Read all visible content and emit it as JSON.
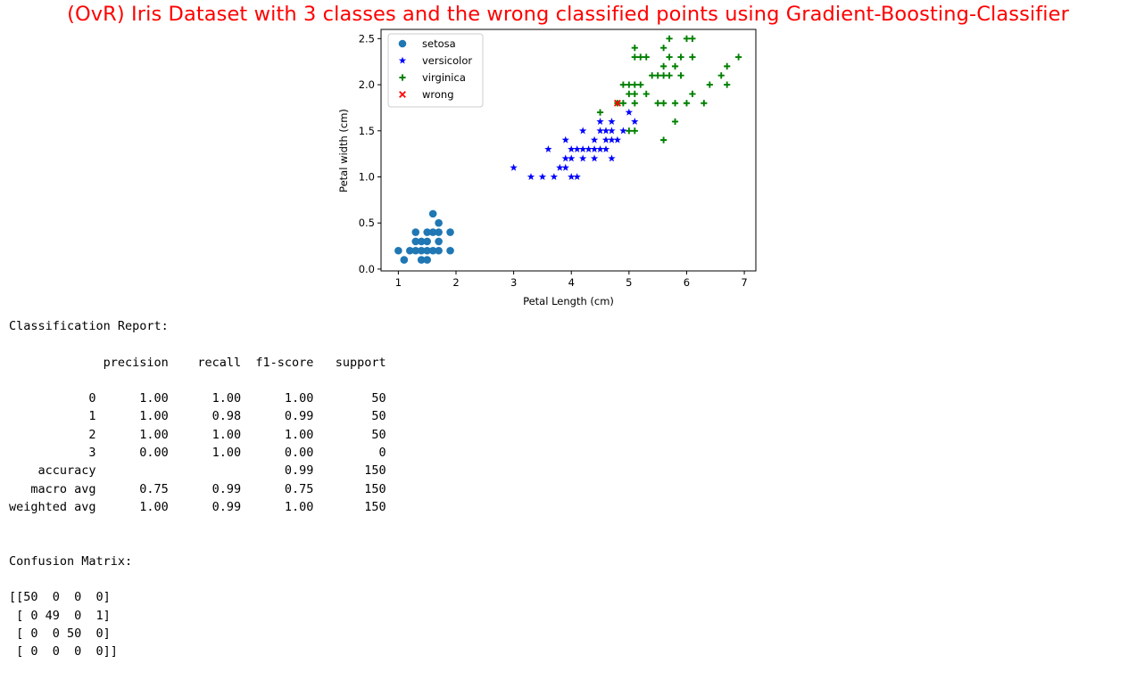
{
  "chart_data": {
    "type": "scatter",
    "title": "(OvR) Iris Dataset with 3 classes and the wrong classified points using Gradient-Boosting-Classifier",
    "title_color": "#ff0000",
    "xlabel": "Petal Length (cm)",
    "ylabel": "Petal width (cm)",
    "xlim": [
      0.7,
      7.2
    ],
    "ylim": [
      -0.02,
      2.6
    ],
    "xticks": [
      1,
      2,
      3,
      4,
      5,
      6,
      7
    ],
    "yticks": [
      0.0,
      0.5,
      1.0,
      1.5,
      2.0,
      2.5
    ],
    "grid": false,
    "legend_position": "top-left",
    "series": [
      {
        "name": "setosa",
        "marker": "circle",
        "color": "#1f77b4",
        "points": [
          [
            1.0,
            0.2
          ],
          [
            1.1,
            0.1
          ],
          [
            1.2,
            0.2
          ],
          [
            1.3,
            0.2
          ],
          [
            1.3,
            0.3
          ],
          [
            1.3,
            0.4
          ],
          [
            1.4,
            0.2
          ],
          [
            1.4,
            0.3
          ],
          [
            1.4,
            0.1
          ],
          [
            1.5,
            0.2
          ],
          [
            1.5,
            0.1
          ],
          [
            1.5,
            0.3
          ],
          [
            1.5,
            0.4
          ],
          [
            1.6,
            0.2
          ],
          [
            1.6,
            0.4
          ],
          [
            1.6,
            0.6
          ],
          [
            1.7,
            0.2
          ],
          [
            1.7,
            0.3
          ],
          [
            1.7,
            0.4
          ],
          [
            1.7,
            0.5
          ],
          [
            1.9,
            0.2
          ],
          [
            1.9,
            0.4
          ]
        ]
      },
      {
        "name": "versicolor",
        "marker": "star",
        "color": "#0000ff",
        "points": [
          [
            3.0,
            1.1
          ],
          [
            3.3,
            1.0
          ],
          [
            3.5,
            1.0
          ],
          [
            3.6,
            1.3
          ],
          [
            3.7,
            1.0
          ],
          [
            3.8,
            1.1
          ],
          [
            3.9,
            1.1
          ],
          [
            3.9,
            1.2
          ],
          [
            3.9,
            1.4
          ],
          [
            4.0,
            1.0
          ],
          [
            4.0,
            1.2
          ],
          [
            4.0,
            1.3
          ],
          [
            4.1,
            1.0
          ],
          [
            4.1,
            1.3
          ],
          [
            4.2,
            1.2
          ],
          [
            4.2,
            1.3
          ],
          [
            4.2,
            1.5
          ],
          [
            4.3,
            1.3
          ],
          [
            4.4,
            1.2
          ],
          [
            4.4,
            1.3
          ],
          [
            4.4,
            1.4
          ],
          [
            4.5,
            1.3
          ],
          [
            4.5,
            1.5
          ],
          [
            4.5,
            1.6
          ],
          [
            4.6,
            1.3
          ],
          [
            4.6,
            1.4
          ],
          [
            4.6,
            1.5
          ],
          [
            4.7,
            1.2
          ],
          [
            4.7,
            1.4
          ],
          [
            4.7,
            1.5
          ],
          [
            4.7,
            1.6
          ],
          [
            4.8,
            1.4
          ],
          [
            4.9,
            1.5
          ],
          [
            5.0,
            1.7
          ],
          [
            5.1,
            1.6
          ]
        ]
      },
      {
        "name": "virginica",
        "marker": "plus",
        "color": "#008000",
        "points": [
          [
            4.5,
            1.7
          ],
          [
            4.8,
            1.8
          ],
          [
            4.9,
            1.8
          ],
          [
            4.9,
            2.0
          ],
          [
            5.0,
            1.5
          ],
          [
            5.0,
            1.9
          ],
          [
            5.0,
            2.0
          ],
          [
            5.1,
            1.5
          ],
          [
            5.1,
            1.8
          ],
          [
            5.1,
            1.9
          ],
          [
            5.1,
            2.0
          ],
          [
            5.1,
            2.3
          ],
          [
            5.1,
            2.4
          ],
          [
            5.2,
            2.0
          ],
          [
            5.2,
            2.3
          ],
          [
            5.3,
            1.9
          ],
          [
            5.3,
            2.3
          ],
          [
            5.4,
            2.1
          ],
          [
            5.5,
            1.8
          ],
          [
            5.5,
            2.1
          ],
          [
            5.6,
            1.4
          ],
          [
            5.6,
            1.8
          ],
          [
            5.6,
            2.1
          ],
          [
            5.6,
            2.2
          ],
          [
            5.6,
            2.4
          ],
          [
            5.7,
            2.1
          ],
          [
            5.7,
            2.3
          ],
          [
            5.7,
            2.5
          ],
          [
            5.8,
            1.6
          ],
          [
            5.8,
            1.8
          ],
          [
            5.8,
            2.2
          ],
          [
            5.9,
            2.1
          ],
          [
            5.9,
            2.3
          ],
          [
            6.0,
            1.8
          ],
          [
            6.0,
            2.5
          ],
          [
            6.1,
            1.9
          ],
          [
            6.1,
            2.3
          ],
          [
            6.1,
            2.5
          ],
          [
            6.3,
            1.8
          ],
          [
            6.4,
            2.0
          ],
          [
            6.6,
            2.1
          ],
          [
            6.7,
            2.0
          ],
          [
            6.7,
            2.2
          ],
          [
            6.9,
            2.3
          ]
        ]
      },
      {
        "name": "wrong",
        "marker": "x",
        "color": "#ff0000",
        "points": [
          [
            4.8,
            1.8
          ]
        ]
      }
    ]
  },
  "report": {
    "heading": "Classification Report:",
    "columns": [
      "precision",
      "recall",
      "f1-score",
      "support"
    ],
    "class_rows": [
      {
        "label": "0",
        "precision": "1.00",
        "recall": "1.00",
        "f1": "1.00",
        "support": "50"
      },
      {
        "label": "1",
        "precision": "1.00",
        "recall": "0.98",
        "f1": "0.99",
        "support": "50"
      },
      {
        "label": "2",
        "precision": "1.00",
        "recall": "1.00",
        "f1": "1.00",
        "support": "50"
      },
      {
        "label": "3",
        "precision": "0.00",
        "recall": "1.00",
        "f1": "0.00",
        "support": "0"
      }
    ],
    "accuracy_row": {
      "label": "accuracy",
      "f1": "0.99",
      "support": "150"
    },
    "avg_rows": [
      {
        "label": "macro avg",
        "precision": "0.75",
        "recall": "0.99",
        "f1": "0.75",
        "support": "150"
      },
      {
        "label": "weighted avg",
        "precision": "1.00",
        "recall": "0.99",
        "f1": "1.00",
        "support": "150"
      }
    ]
  },
  "confusion": {
    "heading": "Confusion Matrix:",
    "matrix": [
      [
        50,
        0,
        0,
        0
      ],
      [
        0,
        49,
        0,
        1
      ],
      [
        0,
        0,
        50,
        0
      ],
      [
        0,
        0,
        0,
        0
      ]
    ]
  }
}
